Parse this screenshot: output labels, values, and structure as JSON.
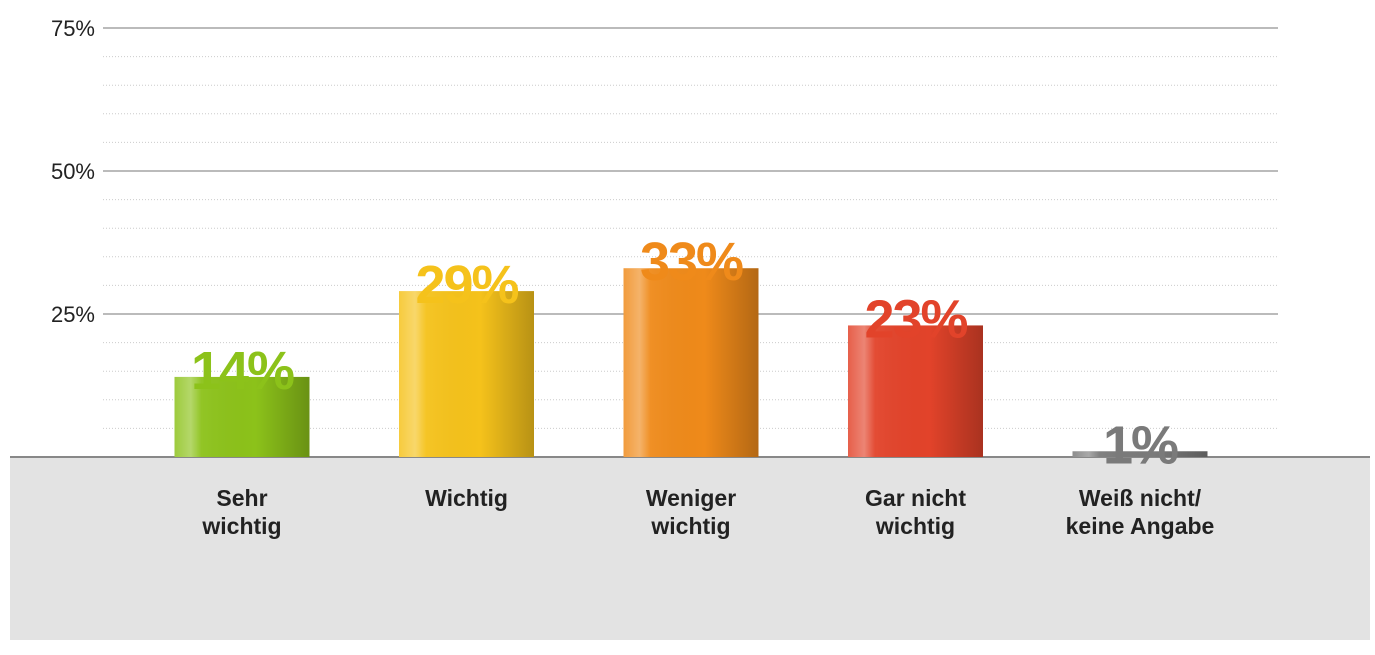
{
  "chart_data": {
    "type": "bar",
    "categories": [
      "Sehr\nwichtig",
      "Wichtig",
      "Weniger\nwichtig",
      "Gar nicht\nwichtig",
      "Weiß nicht/\nkeine Angabe"
    ],
    "values": [
      14,
      29,
      33,
      23,
      1
    ],
    "value_labels": [
      "14%",
      "29%",
      "33%",
      "23%",
      "1%"
    ],
    "colors": [
      "#8cc21a",
      "#f5c21b",
      "#ef8a1a",
      "#e2432a",
      "#7a7a7a"
    ],
    "ylim": [
      0,
      75
    ],
    "yticks": [
      {
        "value": 25,
        "label": "25%"
      },
      {
        "value": 50,
        "label": "50%"
      },
      {
        "value": 75,
        "label": "75%"
      }
    ],
    "yminorticks": [
      5,
      10,
      15,
      20,
      30,
      35,
      40,
      45,
      55,
      60,
      65,
      70
    ],
    "grid": true
  }
}
